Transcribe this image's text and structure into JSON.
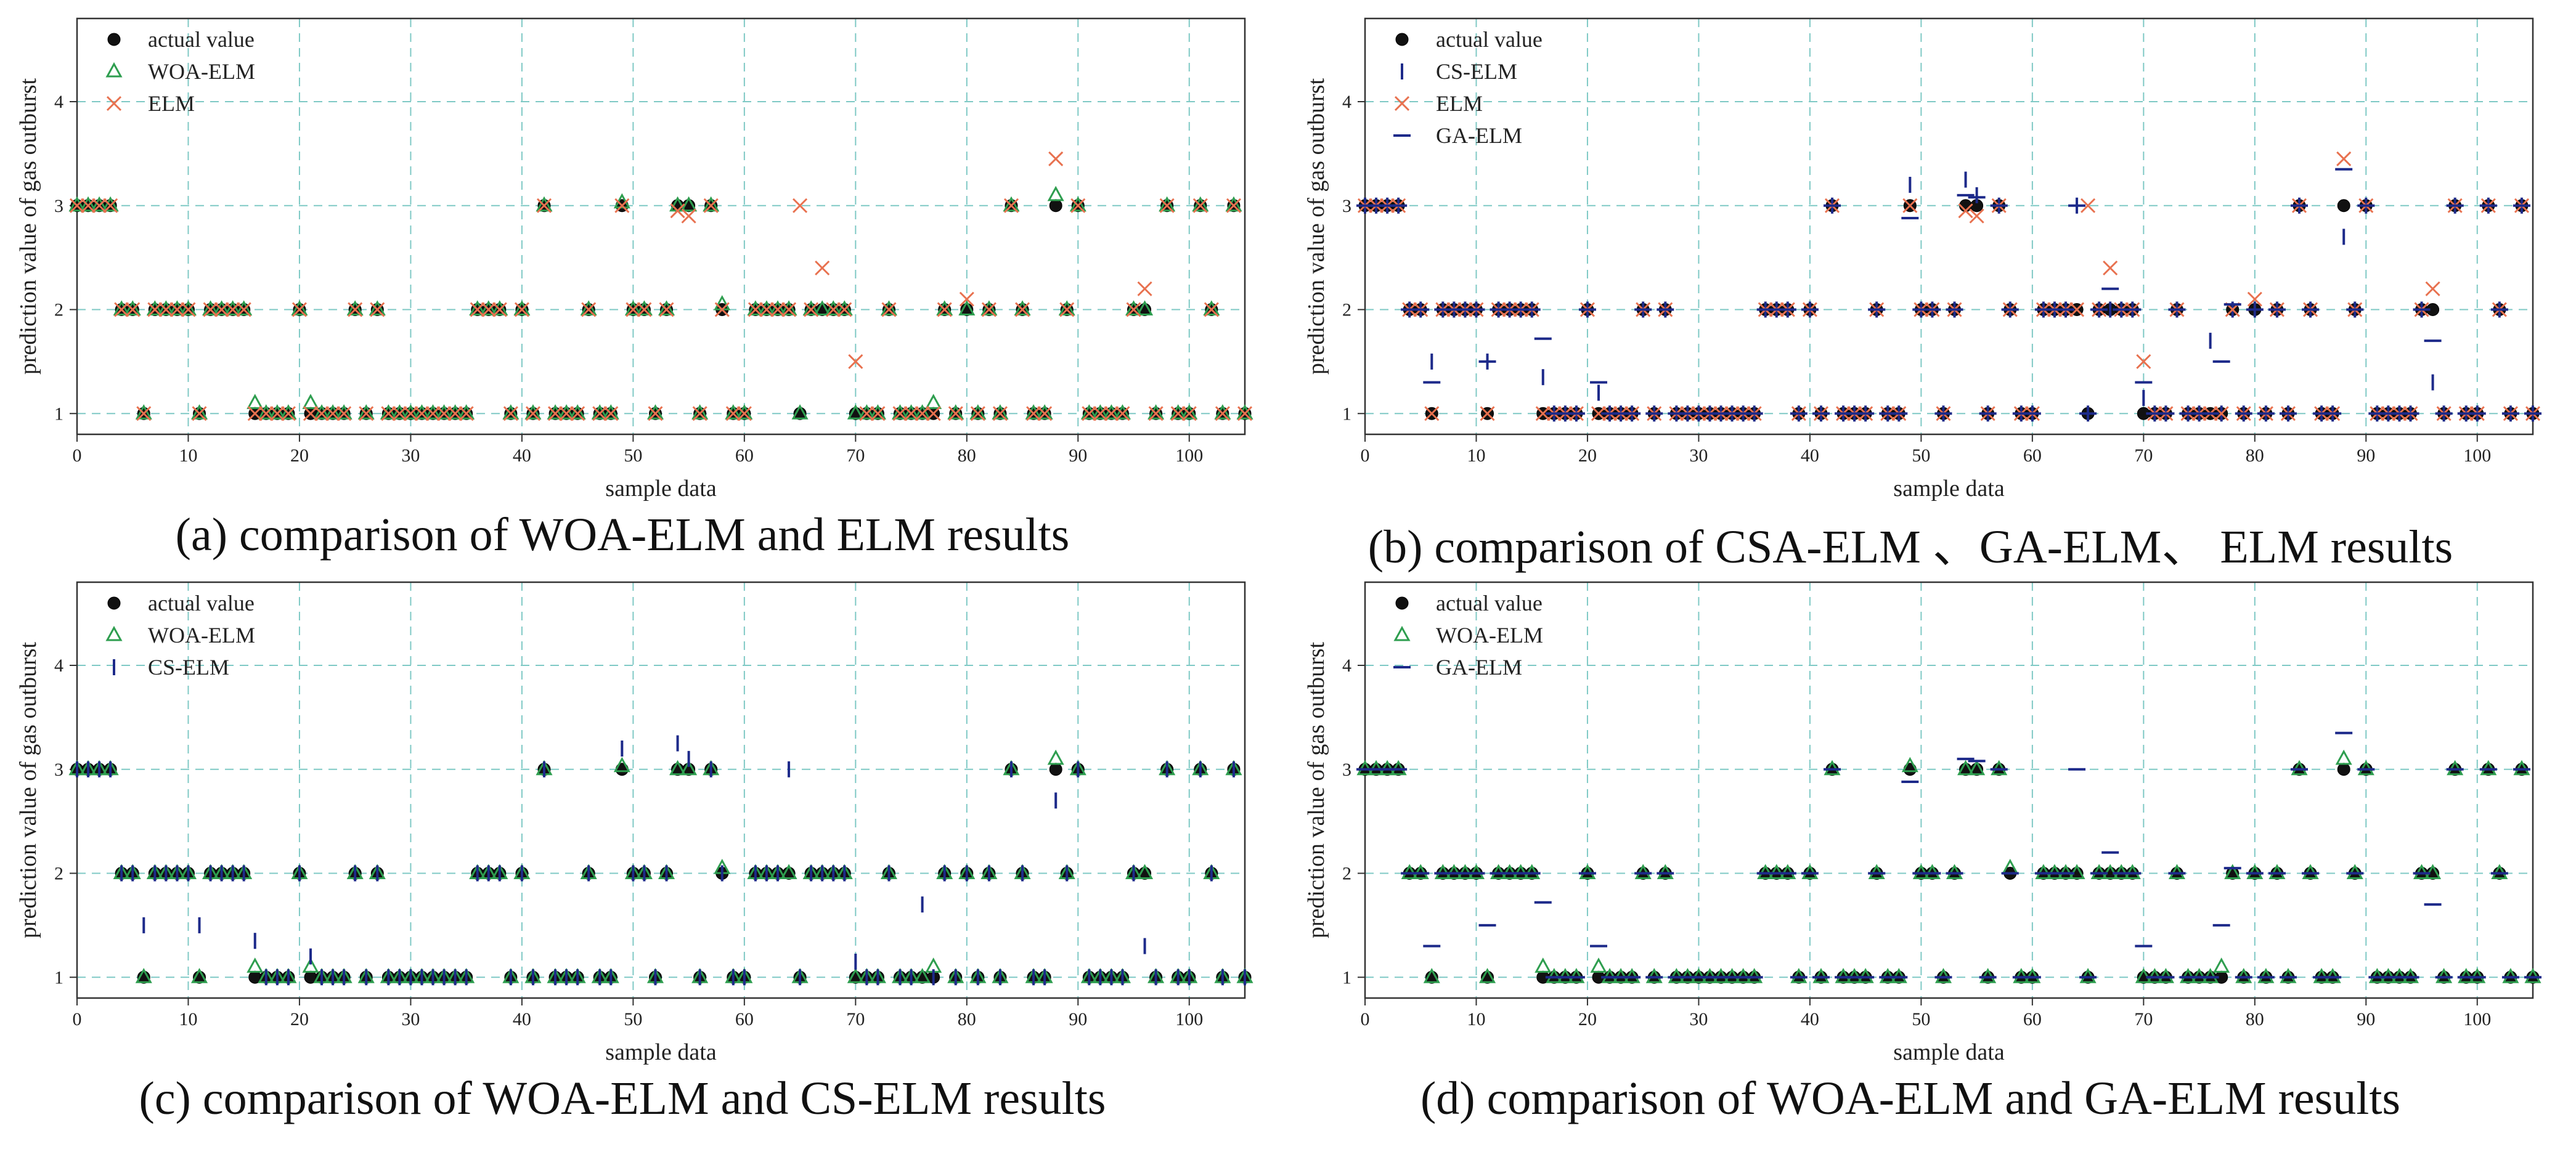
{
  "chart_data": [
    {
      "type": "scatter",
      "panel_label": "(a)",
      "caption": "(a) comparison of WOA-ELM and ELM results",
      "xlabel": "sample data",
      "ylabel": "prediction value of gas outburst",
      "xlim": [
        0,
        105
      ],
      "ylim": [
        0.8,
        4.8
      ],
      "xticks": [
        0,
        10,
        20,
        30,
        40,
        50,
        60,
        70,
        80,
        90,
        100
      ],
      "yticks": [
        1,
        2,
        3,
        4
      ],
      "grid": true,
      "legend": "top-left",
      "series": [
        {
          "name": "actual value",
          "key": "actual"
        },
        {
          "name": "WOA-ELM",
          "key": "woa"
        },
        {
          "name": "ELM",
          "key": "elm"
        }
      ]
    },
    {
      "type": "scatter",
      "panel_label": "(b)",
      "caption": "(b) comparison of CSA-ELM 、GA-ELM、 ELM results",
      "xlabel": "sample data",
      "ylabel": "prediction value of gas outburst",
      "xlim": [
        0,
        105
      ],
      "ylim": [
        0.8,
        4.8
      ],
      "xticks": [
        0,
        10,
        20,
        30,
        40,
        50,
        60,
        70,
        80,
        90,
        100
      ],
      "yticks": [
        1,
        2,
        3,
        4
      ],
      "grid": true,
      "legend": "top-left",
      "series": [
        {
          "name": "actual value",
          "key": "actual"
        },
        {
          "name": "CS-ELM",
          "key": "cs"
        },
        {
          "name": "ELM",
          "key": "elm"
        },
        {
          "name": "GA-ELM",
          "key": "ga"
        }
      ]
    },
    {
      "type": "scatter",
      "panel_label": "(c)",
      "caption": "(c) comparison of WOA-ELM and CS-ELM results",
      "xlabel": "sample data",
      "ylabel": "prediction value of gas outburst",
      "xlim": [
        0,
        105
      ],
      "ylim": [
        0.8,
        4.8
      ],
      "xticks": [
        0,
        10,
        20,
        30,
        40,
        50,
        60,
        70,
        80,
        90,
        100
      ],
      "yticks": [
        1,
        2,
        3,
        4
      ],
      "grid": true,
      "legend": "top-left",
      "series": [
        {
          "name": "actual value",
          "key": "actual"
        },
        {
          "name": "WOA-ELM",
          "key": "woa"
        },
        {
          "name": "CS-ELM",
          "key": "cs"
        }
      ]
    },
    {
      "type": "scatter",
      "panel_label": "(d)",
      "caption": "(d) comparison of WOA-ELM and GA-ELM results",
      "xlabel": "sample data",
      "ylabel": "prediction value of gas outburst",
      "xlim": [
        0,
        105
      ],
      "ylim": [
        0.8,
        4.8
      ],
      "xticks": [
        0,
        10,
        20,
        30,
        40,
        50,
        60,
        70,
        80,
        90,
        100
      ],
      "yticks": [
        1,
        2,
        3,
        4
      ],
      "grid": true,
      "legend": "top-left",
      "series": [
        {
          "name": "actual value",
          "key": "actual"
        },
        {
          "name": "WOA-ELM",
          "key": "woa"
        },
        {
          "name": "GA-ELM",
          "key": "ga"
        }
      ]
    }
  ],
  "samples": {
    "actual": [
      3,
      3,
      3,
      3,
      2,
      2,
      1,
      2,
      2,
      2,
      2,
      1,
      2,
      2,
      2,
      2,
      1,
      1,
      1,
      1,
      2,
      1,
      1,
      1,
      1,
      2,
      1,
      2,
      1,
      1,
      1,
      1,
      1,
      1,
      1,
      1,
      2,
      2,
      2,
      1,
      2,
      1,
      3,
      1,
      1,
      1,
      2,
      1,
      1,
      3,
      2,
      2,
      1,
      2,
      3,
      3,
      1,
      3,
      2,
      1,
      1,
      2,
      2,
      2,
      2,
      1,
      2,
      2,
      2,
      2,
      1,
      1,
      1,
      2,
      1,
      1,
      1,
      1,
      2,
      1,
      2,
      1,
      2,
      1,
      3,
      2,
      1,
      1,
      3,
      2,
      3,
      1,
      1,
      1,
      1,
      2,
      2,
      1,
      3,
      1,
      1,
      3,
      2,
      1,
      3,
      1
    ],
    "woa": [
      3,
      3,
      3,
      3,
      2,
      2,
      1,
      2,
      2,
      2,
      2,
      1,
      2,
      2,
      2,
      2,
      1.1,
      1,
      1,
      1,
      2,
      1.1,
      1,
      1,
      1,
      2,
      1,
      2,
      1,
      1,
      1,
      1,
      1,
      1,
      1,
      1,
      2,
      2,
      2,
      1,
      2,
      1,
      3,
      1,
      1,
      1,
      2,
      1,
      1,
      3.03,
      2,
      2,
      1,
      2,
      3,
      3,
      1,
      3,
      2.05,
      1,
      1,
      2,
      2,
      2,
      2,
      1,
      2,
      2,
      2,
      2,
      1,
      1,
      1,
      2,
      1,
      1,
      1,
      1.1,
      2,
      1,
      2,
      1,
      2,
      1,
      3,
      2,
      1,
      1,
      3.1,
      2,
      3,
      1,
      1,
      1,
      1,
      2,
      2,
      1,
      3,
      1,
      1,
      3,
      2,
      1,
      3,
      1
    ],
    "elm": [
      3,
      3,
      3,
      3,
      2,
      2,
      1,
      2,
      2,
      2,
      2,
      1,
      2,
      2,
      2,
      2,
      1,
      1,
      1,
      1,
      2,
      1,
      1,
      1,
      1,
      2,
      1,
      2,
      1,
      1,
      1,
      1,
      1,
      1,
      1,
      1,
      2,
      2,
      2,
      1,
      2,
      1,
      3,
      1,
      1,
      1,
      2,
      1,
      1,
      3,
      2,
      2,
      1,
      2,
      2.95,
      2.9,
      1,
      3,
      2,
      1,
      1,
      2,
      2,
      2,
      2,
      3,
      2,
      2.4,
      2,
      2,
      1.5,
      1,
      1,
      2,
      1,
      1,
      1,
      1,
      2,
      1,
      2.1,
      1,
      2,
      1,
      3,
      2,
      1,
      1,
      3.45,
      2,
      3,
      1,
      1,
      1,
      1,
      2,
      2.2,
      1,
      3,
      1,
      1,
      3,
      2,
      1,
      3,
      1
    ],
    "cs": [
      3,
      3,
      3,
      3,
      2,
      2,
      1.5,
      2,
      2,
      2,
      2,
      1.5,
      2,
      2,
      2,
      2,
      1.35,
      1,
      1,
      1,
      2,
      1.2,
      1,
      1,
      1,
      2,
      1,
      2,
      1,
      1,
      1,
      1,
      1,
      1,
      1,
      1,
      2,
      2,
      2,
      1,
      2,
      1,
      3,
      1,
      1,
      1,
      2,
      1,
      1,
      3.2,
      2,
      2,
      1,
      2,
      3.25,
      3.1,
      1,
      3,
      2,
      1,
      1,
      2,
      2,
      2,
      3,
      1,
      2,
      2,
      2,
      2,
      1.15,
      1,
      1,
      2,
      1,
      1,
      1.7,
      1,
      2,
      1,
      2,
      1,
      2,
      1,
      3,
      2,
      1,
      1,
      2.7,
      2,
      3,
      1,
      1,
      1,
      1,
      2,
      1.3,
      1,
      3,
      1,
      1,
      3,
      2,
      1,
      3,
      1
    ],
    "ga": [
      3,
      3,
      3,
      3,
      2,
      2,
      1.3,
      2,
      2,
      2,
      2,
      1.5,
      2,
      2,
      2,
      2,
      1.72,
      1,
      1,
      1,
      2,
      1.3,
      1,
      1,
      1,
      2,
      1,
      2,
      1,
      1,
      1,
      1,
      1,
      1,
      1,
      1,
      2,
      2,
      2,
      1,
      2,
      1,
      3,
      1,
      1,
      1,
      2,
      1,
      1,
      2.88,
      2,
      2,
      1,
      2,
      3.1,
      3.08,
      1,
      3,
      2,
      1,
      1,
      2,
      2,
      2,
      3,
      1,
      2,
      2.2,
      2,
      2,
      1.3,
      1,
      1,
      2,
      1,
      1,
      1,
      1.5,
      2.05,
      1,
      2,
      1,
      2,
      1,
      3,
      2,
      1,
      1,
      3.35,
      2,
      3,
      1,
      1,
      1,
      1,
      2,
      1.7,
      1,
      3,
      1,
      1,
      3,
      2,
      1,
      3,
      1
    ]
  },
  "colors": {
    "grid": "#7fc9c5",
    "axis": "#333333",
    "actual_fill": "#111111",
    "woa": "#2e9e4f",
    "elm": "#e8714f",
    "cs": "#1d2a8a",
    "ga": "#1d2a8a"
  }
}
